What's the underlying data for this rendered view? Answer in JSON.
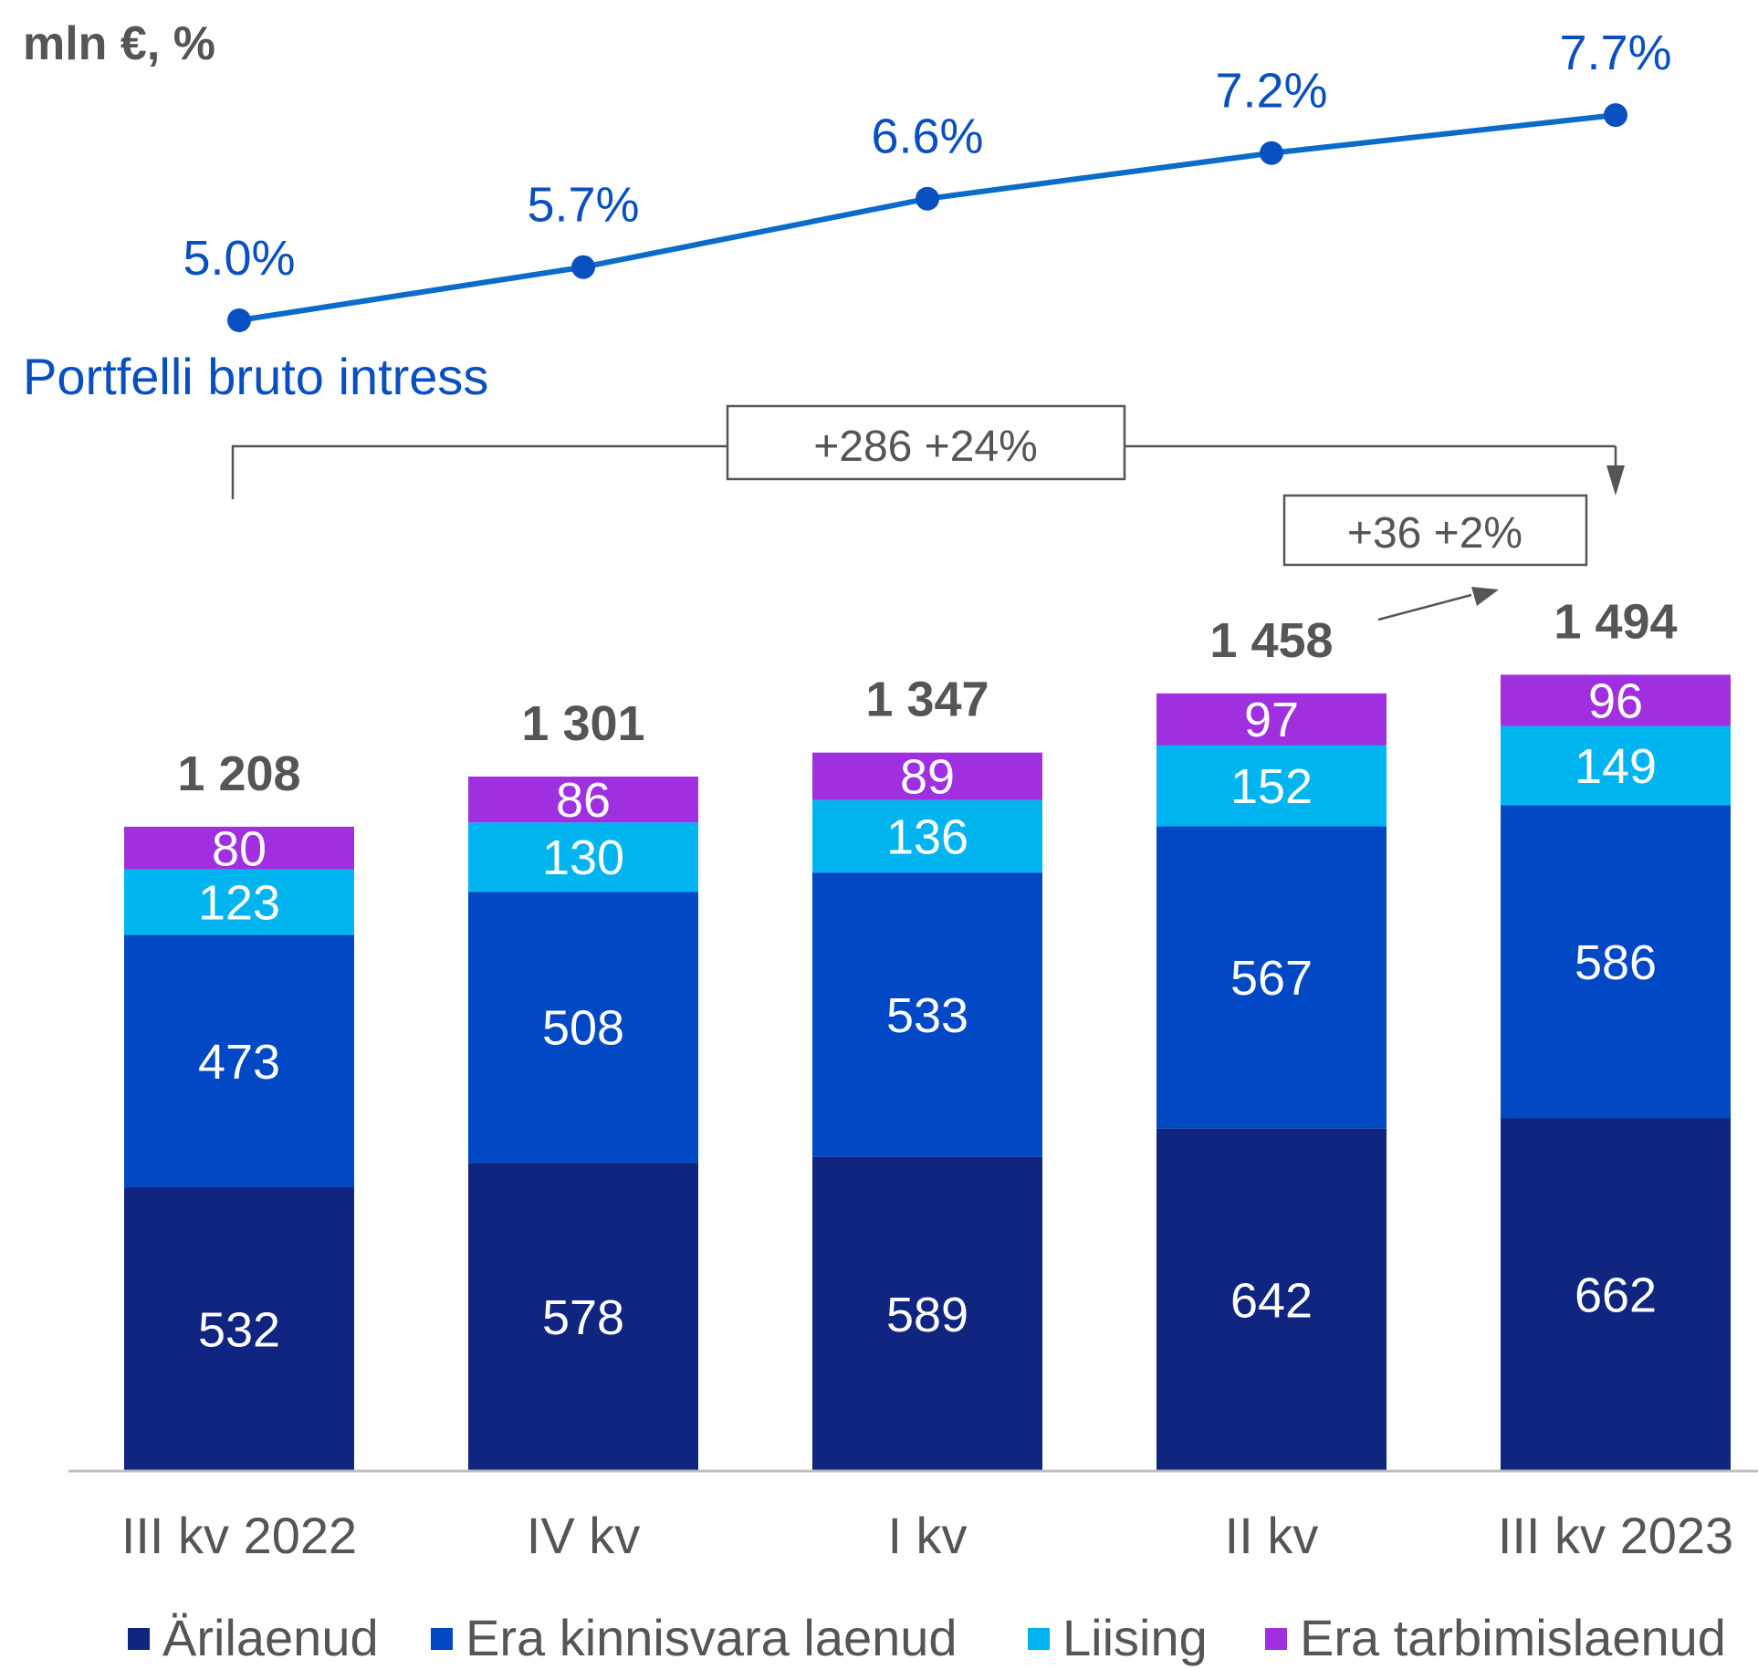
{
  "unit_label": "mln €, %",
  "colors": {
    "arilaenud": "#0F2580",
    "era_kinnisvara": "#0048C4",
    "liising": "#00B4F0",
    "era_tarbimis": "#A02FE0",
    "line": "#0A6CC8",
    "line_text": "#0A4FC0",
    "annotation": "#555555",
    "axis": "#BFBFBF"
  },
  "chart_data": {
    "type": "bar",
    "stacked": true,
    "categories": [
      "III kv 2022",
      "IV kv",
      "I kv",
      "II kv",
      "III kv 2023"
    ],
    "series": [
      {
        "name": "Ärilaenud",
        "values": [
          532,
          578,
          589,
          642,
          662
        ],
        "color": "#0F2580"
      },
      {
        "name": "Era kinnisvara laenud",
        "values": [
          473,
          508,
          533,
          567,
          586
        ],
        "color": "#0048C4"
      },
      {
        "name": "Liising",
        "values": [
          123,
          130,
          136,
          152,
          149
        ],
        "color": "#00B4F0"
      },
      {
        "name": "Era tarbimislaenud",
        "values": [
          80,
          86,
          89,
          97,
          96
        ],
        "color": "#A02FE0"
      }
    ],
    "totals": [
      "1 208",
      "1 301",
      "1 347",
      "1 458",
      "1 494"
    ],
    "line": {
      "name": "Portfelli bruto intress",
      "values": [
        5.0,
        5.7,
        6.6,
        7.2,
        7.7
      ],
      "labels": [
        "5.0%",
        "5.7%",
        "6.6%",
        "7.2%",
        "7.7%"
      ]
    },
    "annotations": [
      {
        "text": "+286 +24%",
        "from": "III kv 2022",
        "to": "III kv 2023"
      },
      {
        "text": "+36 +2%",
        "from": "II kv",
        "to": "III kv 2023"
      }
    ],
    "legend_position": "bottom"
  }
}
